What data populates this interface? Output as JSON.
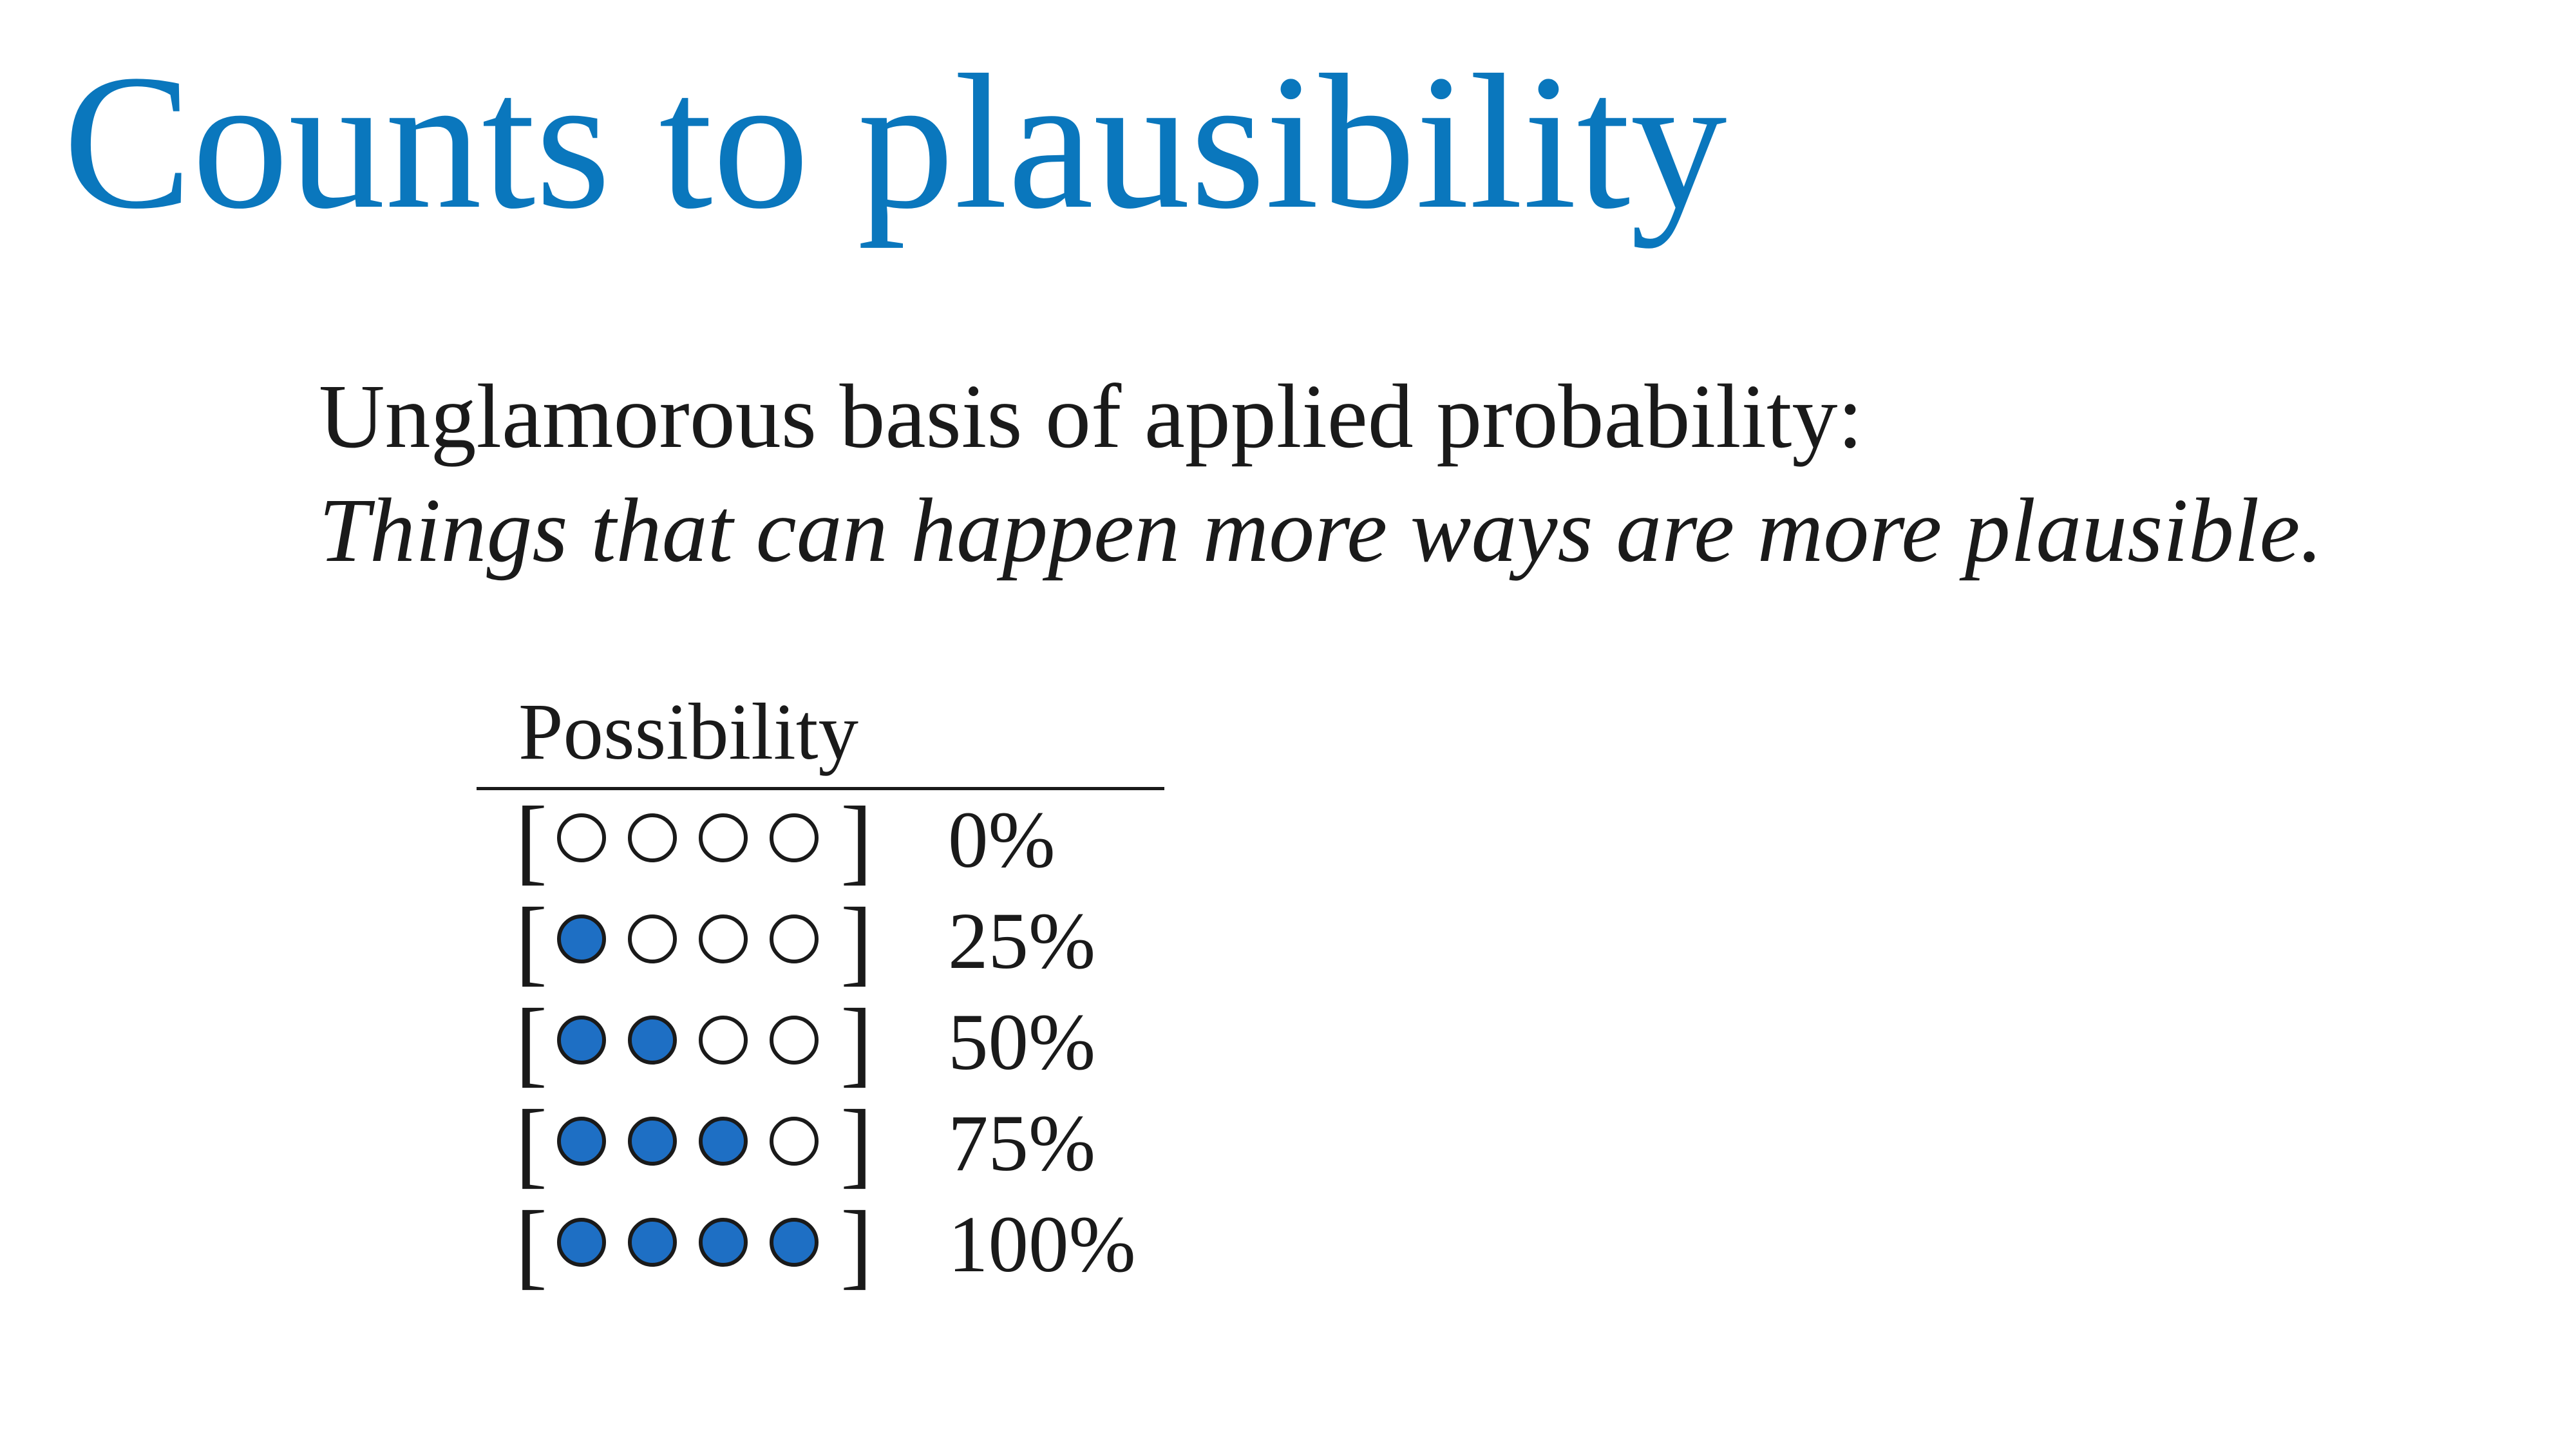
{
  "slide": {
    "title": "Counts to plausibility",
    "subtitle": "Unglamorous basis of applied probability:",
    "tagline": "Things that can happen more ways are more plausible."
  },
  "colors": {
    "title": "#0a77bd",
    "filled_dot": "#1e6fc4",
    "empty_dot": "#ffffff",
    "outline": "#1a1a1a"
  },
  "table": {
    "header": "Possibility",
    "bracket_open": "[",
    "bracket_close": "]",
    "rows": [
      {
        "filled": 0,
        "total": 4,
        "percent": "0%"
      },
      {
        "filled": 1,
        "total": 4,
        "percent": "25%"
      },
      {
        "filled": 2,
        "total": 4,
        "percent": "50%"
      },
      {
        "filled": 3,
        "total": 4,
        "percent": "75%"
      },
      {
        "filled": 4,
        "total": 4,
        "percent": "100%"
      }
    ]
  }
}
